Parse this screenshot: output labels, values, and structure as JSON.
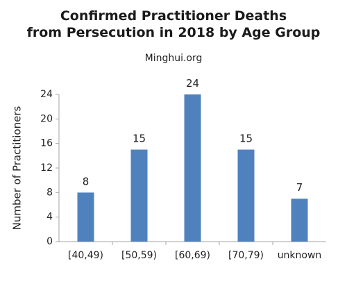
{
  "chart_data": {
    "type": "bar",
    "title_line1": "Confirmed Practitioner Deaths",
    "title_line2": "from Persecution in 2018 by Age Group",
    "subtitle": "Minghui.org",
    "xlabel": "",
    "ylabel": "Number of Practitioners",
    "categories": [
      "[40,49)",
      "[50,59)",
      "[60,69)",
      "[70,79)",
      "unknown"
    ],
    "values": [
      8,
      15,
      24,
      15,
      7
    ],
    "data_labels": [
      "8",
      "15",
      "24",
      "15",
      "7"
    ],
    "ylim": [
      0,
      24
    ],
    "yticks": [
      0,
      4,
      8,
      12,
      16,
      20,
      24
    ],
    "ytick_labels": [
      "0",
      "4",
      "8",
      "12",
      "16",
      "20",
      "24"
    ],
    "grid": false,
    "legend": "none",
    "bar_color": "#4f81bd",
    "axis_color": "#a6a6a6"
  }
}
